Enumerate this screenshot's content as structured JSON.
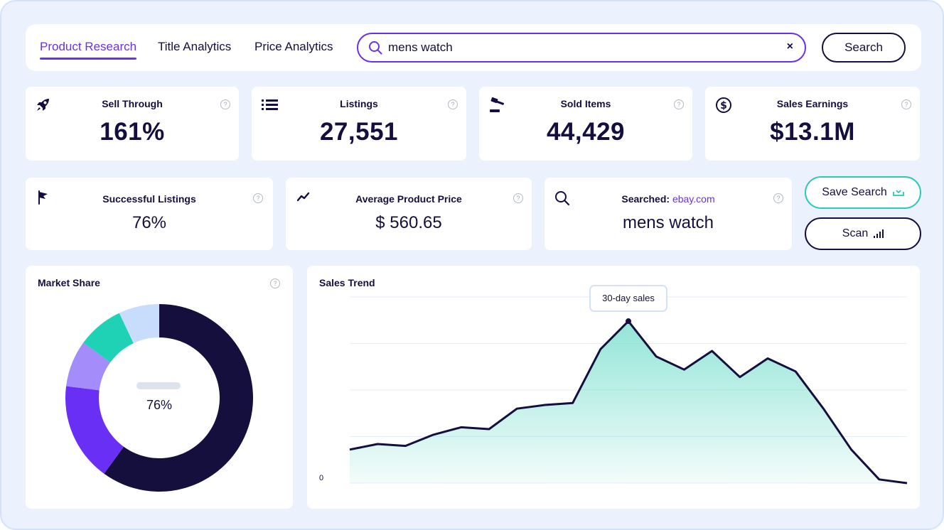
{
  "nav": {
    "tabs": [
      {
        "label": "Product Research",
        "active": true
      },
      {
        "label": "Title Analytics",
        "active": false
      },
      {
        "label": "Price Analytics",
        "active": false
      }
    ]
  },
  "search": {
    "value": "mens watch",
    "clear_label": "×",
    "button_label": "Search"
  },
  "stats": [
    {
      "title": "Sell Through",
      "value": "161%",
      "icon": "rocket-icon"
    },
    {
      "title": "Listings",
      "value": "27,551",
      "icon": "list-icon"
    },
    {
      "title": "Sold Items",
      "value": "44,429",
      "icon": "gavel-icon"
    },
    {
      "title": "Sales Earnings",
      "value": "$13.1M",
      "icon": "dollar-icon"
    }
  ],
  "stats2": [
    {
      "title": "Successful Listings",
      "value": "76%",
      "icon": "flag-icon"
    },
    {
      "title": "Average Product Price",
      "value": "$ 560.65",
      "icon": "trend-icon"
    },
    {
      "title_prefix": "Searched: ",
      "title_site": "ebay.com",
      "value": "mens watch",
      "icon": "search-icon"
    }
  ],
  "help_label": "?",
  "actions": {
    "save_label": "Save Search",
    "scan_label": "Scan"
  },
  "market_share": {
    "title": "Market Share",
    "center_value": "76%",
    "colors": [
      "#150f3d",
      "#6a2ff5",
      "#a48cfb",
      "#1fd2b6",
      "#c8dcfb"
    ]
  },
  "sales_trend": {
    "title": "Sales Trend",
    "tooltip": "30-day sales",
    "y_zero_label": "0",
    "line_color": "#150f3d",
    "fill_color": "#7fe0d0"
  },
  "chart_data": [
    {
      "type": "pie",
      "title": "Market Share",
      "values": [
        60,
        17,
        8,
        8,
        7
      ],
      "colors": [
        "#150f3d",
        "#6a2ff5",
        "#a48cfb",
        "#1fd2b6",
        "#c8dcfb"
      ]
    },
    {
      "type": "area",
      "title": "Sales Trend",
      "x": [
        0,
        1,
        2,
        3,
        4,
        5,
        6,
        7,
        8,
        9,
        10,
        11,
        12,
        13,
        14,
        15,
        16,
        17,
        18,
        19,
        20
      ],
      "y": [
        18,
        21,
        20,
        26,
        30,
        29,
        40,
        42,
        43,
        72,
        87,
        68,
        61,
        71,
        57,
        67,
        60,
        40,
        18,
        2,
        0
      ],
      "highlight_index": 10,
      "ylim": [
        0,
        100
      ]
    }
  ]
}
